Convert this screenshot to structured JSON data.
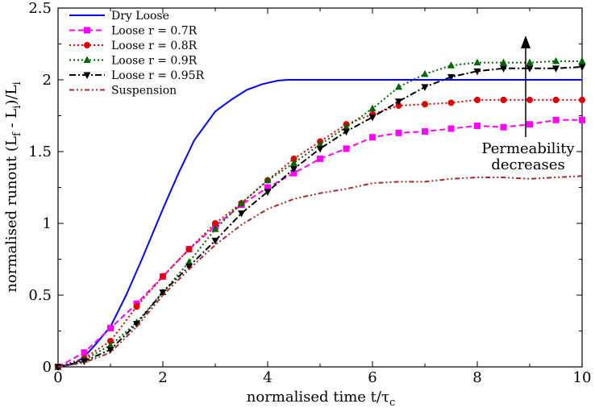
{
  "chart_data": {
    "type": "line",
    "xlabel": "normalised time t/τ",
    "xlabel_sub": "c",
    "ylabel": "normalised runout (L",
    "ylabel_sub1": "f",
    "ylabel_mid": " - L",
    "ylabel_sub2": "i",
    "ylabel_end": ")/L",
    "ylabel_sub3": "i",
    "xlim": [
      0,
      10
    ],
    "ylim": [
      0,
      2.5
    ],
    "xticks": [
      "0",
      "2",
      "4",
      "6",
      "8",
      "10"
    ],
    "yticks": [
      "0",
      "0.5",
      "1",
      "1.5",
      "2",
      "2.5"
    ],
    "grid": false,
    "legend_position": "top-left",
    "annotation": {
      "line1": "Permeability",
      "line2": "decreases"
    },
    "series": [
      {
        "name": "Dry Loose",
        "color": "#0000ff",
        "style": "solid",
        "marker": "none",
        "points": [
          [
            0,
            0
          ],
          [
            0.3,
            0.02
          ],
          [
            0.5,
            0.07
          ],
          [
            0.7,
            0.15
          ],
          [
            1.0,
            0.28
          ],
          [
            1.3,
            0.5
          ],
          [
            1.6,
            0.75
          ],
          [
            2.0,
            1.1
          ],
          [
            2.3,
            1.35
          ],
          [
            2.6,
            1.58
          ],
          [
            3.0,
            1.78
          ],
          [
            3.3,
            1.86
          ],
          [
            3.6,
            1.93
          ],
          [
            3.9,
            1.97
          ],
          [
            4.2,
            1.995
          ],
          [
            4.4,
            2.0
          ],
          [
            10,
            2.0
          ]
        ]
      },
      {
        "name": "Loose r = 0.7R",
        "color": "#ff00ff",
        "style": "dashed",
        "marker": "square",
        "points": [
          [
            0,
            0
          ],
          [
            0.5,
            0.1
          ],
          [
            1.0,
            0.27
          ],
          [
            1.5,
            0.44
          ],
          [
            2.0,
            0.63
          ],
          [
            2.5,
            0.82
          ],
          [
            3.0,
            0.98
          ],
          [
            3.5,
            1.13
          ],
          [
            4.0,
            1.25
          ],
          [
            4.5,
            1.35
          ],
          [
            5.0,
            1.45
          ],
          [
            5.5,
            1.52
          ],
          [
            6.0,
            1.6
          ],
          [
            6.5,
            1.63
          ],
          [
            7.0,
            1.64
          ],
          [
            7.5,
            1.66
          ],
          [
            8.0,
            1.68
          ],
          [
            8.5,
            1.67
          ],
          [
            9.0,
            1.69
          ],
          [
            9.5,
            1.72
          ],
          [
            10,
            1.72
          ]
        ]
      },
      {
        "name": "Loose r = 0.8R",
        "color": "#e00000",
        "style": "dotted",
        "marker": "circle",
        "points": [
          [
            0,
            0
          ],
          [
            0.5,
            0.06
          ],
          [
            1.0,
            0.18
          ],
          [
            1.5,
            0.42
          ],
          [
            2.0,
            0.63
          ],
          [
            2.5,
            0.82
          ],
          [
            3.0,
            1.0
          ],
          [
            3.5,
            1.14
          ],
          [
            4.0,
            1.3
          ],
          [
            4.5,
            1.45
          ],
          [
            5.0,
            1.57
          ],
          [
            5.5,
            1.69
          ],
          [
            6.0,
            1.76
          ],
          [
            6.5,
            1.82
          ],
          [
            7.0,
            1.83
          ],
          [
            7.5,
            1.84
          ],
          [
            8.0,
            1.86
          ],
          [
            8.5,
            1.86
          ],
          [
            9.0,
            1.86
          ],
          [
            9.5,
            1.86
          ],
          [
            10,
            1.86
          ]
        ]
      },
      {
        "name": "Loose r = 0.9R",
        "color": "#006400",
        "style": "dotted",
        "marker": "triangle",
        "points": [
          [
            0,
            0
          ],
          [
            0.5,
            0.05
          ],
          [
            1.0,
            0.15
          ],
          [
            1.5,
            0.31
          ],
          [
            2.0,
            0.52
          ],
          [
            2.5,
            0.73
          ],
          [
            3.0,
            0.96
          ],
          [
            3.5,
            1.14
          ],
          [
            4.0,
            1.3
          ],
          [
            4.5,
            1.42
          ],
          [
            5.0,
            1.55
          ],
          [
            5.5,
            1.67
          ],
          [
            6.0,
            1.8
          ],
          [
            6.5,
            1.95
          ],
          [
            7.0,
            2.04
          ],
          [
            7.5,
            2.1
          ],
          [
            8.0,
            2.12
          ],
          [
            8.5,
            2.12
          ],
          [
            9.0,
            2.12
          ],
          [
            9.5,
            2.13
          ],
          [
            10,
            2.13
          ]
        ]
      },
      {
        "name": "Loose r = 0.95R",
        "color": "#000000",
        "style": "dashdot",
        "marker": "triangle-down",
        "points": [
          [
            0,
            0
          ],
          [
            0.5,
            0.04
          ],
          [
            1.0,
            0.12
          ],
          [
            1.5,
            0.3
          ],
          [
            2.0,
            0.52
          ],
          [
            2.5,
            0.7
          ],
          [
            3.0,
            0.88
          ],
          [
            3.5,
            1.07
          ],
          [
            4.0,
            1.22
          ],
          [
            4.5,
            1.38
          ],
          [
            5.0,
            1.52
          ],
          [
            5.5,
            1.64
          ],
          [
            6.0,
            1.74
          ],
          [
            6.5,
            1.85
          ],
          [
            7.0,
            1.95
          ],
          [
            7.5,
            2.02
          ],
          [
            8.0,
            2.06
          ],
          [
            8.5,
            2.08
          ],
          [
            9.0,
            2.08
          ],
          [
            9.5,
            2.08
          ],
          [
            10,
            2.09
          ]
        ]
      },
      {
        "name": "Suspension",
        "color": "#a52a2a",
        "style": "dashdotdot",
        "marker": "none",
        "points": [
          [
            0,
            0
          ],
          [
            0.5,
            0.03
          ],
          [
            1.0,
            0.1
          ],
          [
            1.5,
            0.28
          ],
          [
            2.0,
            0.5
          ],
          [
            2.5,
            0.68
          ],
          [
            3.0,
            0.85
          ],
          [
            3.5,
            0.99
          ],
          [
            4.0,
            1.1
          ],
          [
            4.5,
            1.17
          ],
          [
            5.0,
            1.21
          ],
          [
            5.5,
            1.24
          ],
          [
            6.0,
            1.28
          ],
          [
            6.5,
            1.29
          ],
          [
            7.0,
            1.29
          ],
          [
            7.5,
            1.31
          ],
          [
            8.0,
            1.32
          ],
          [
            8.5,
            1.32
          ],
          [
            9.0,
            1.31
          ],
          [
            9.5,
            1.32
          ],
          [
            10,
            1.33
          ]
        ]
      }
    ]
  }
}
